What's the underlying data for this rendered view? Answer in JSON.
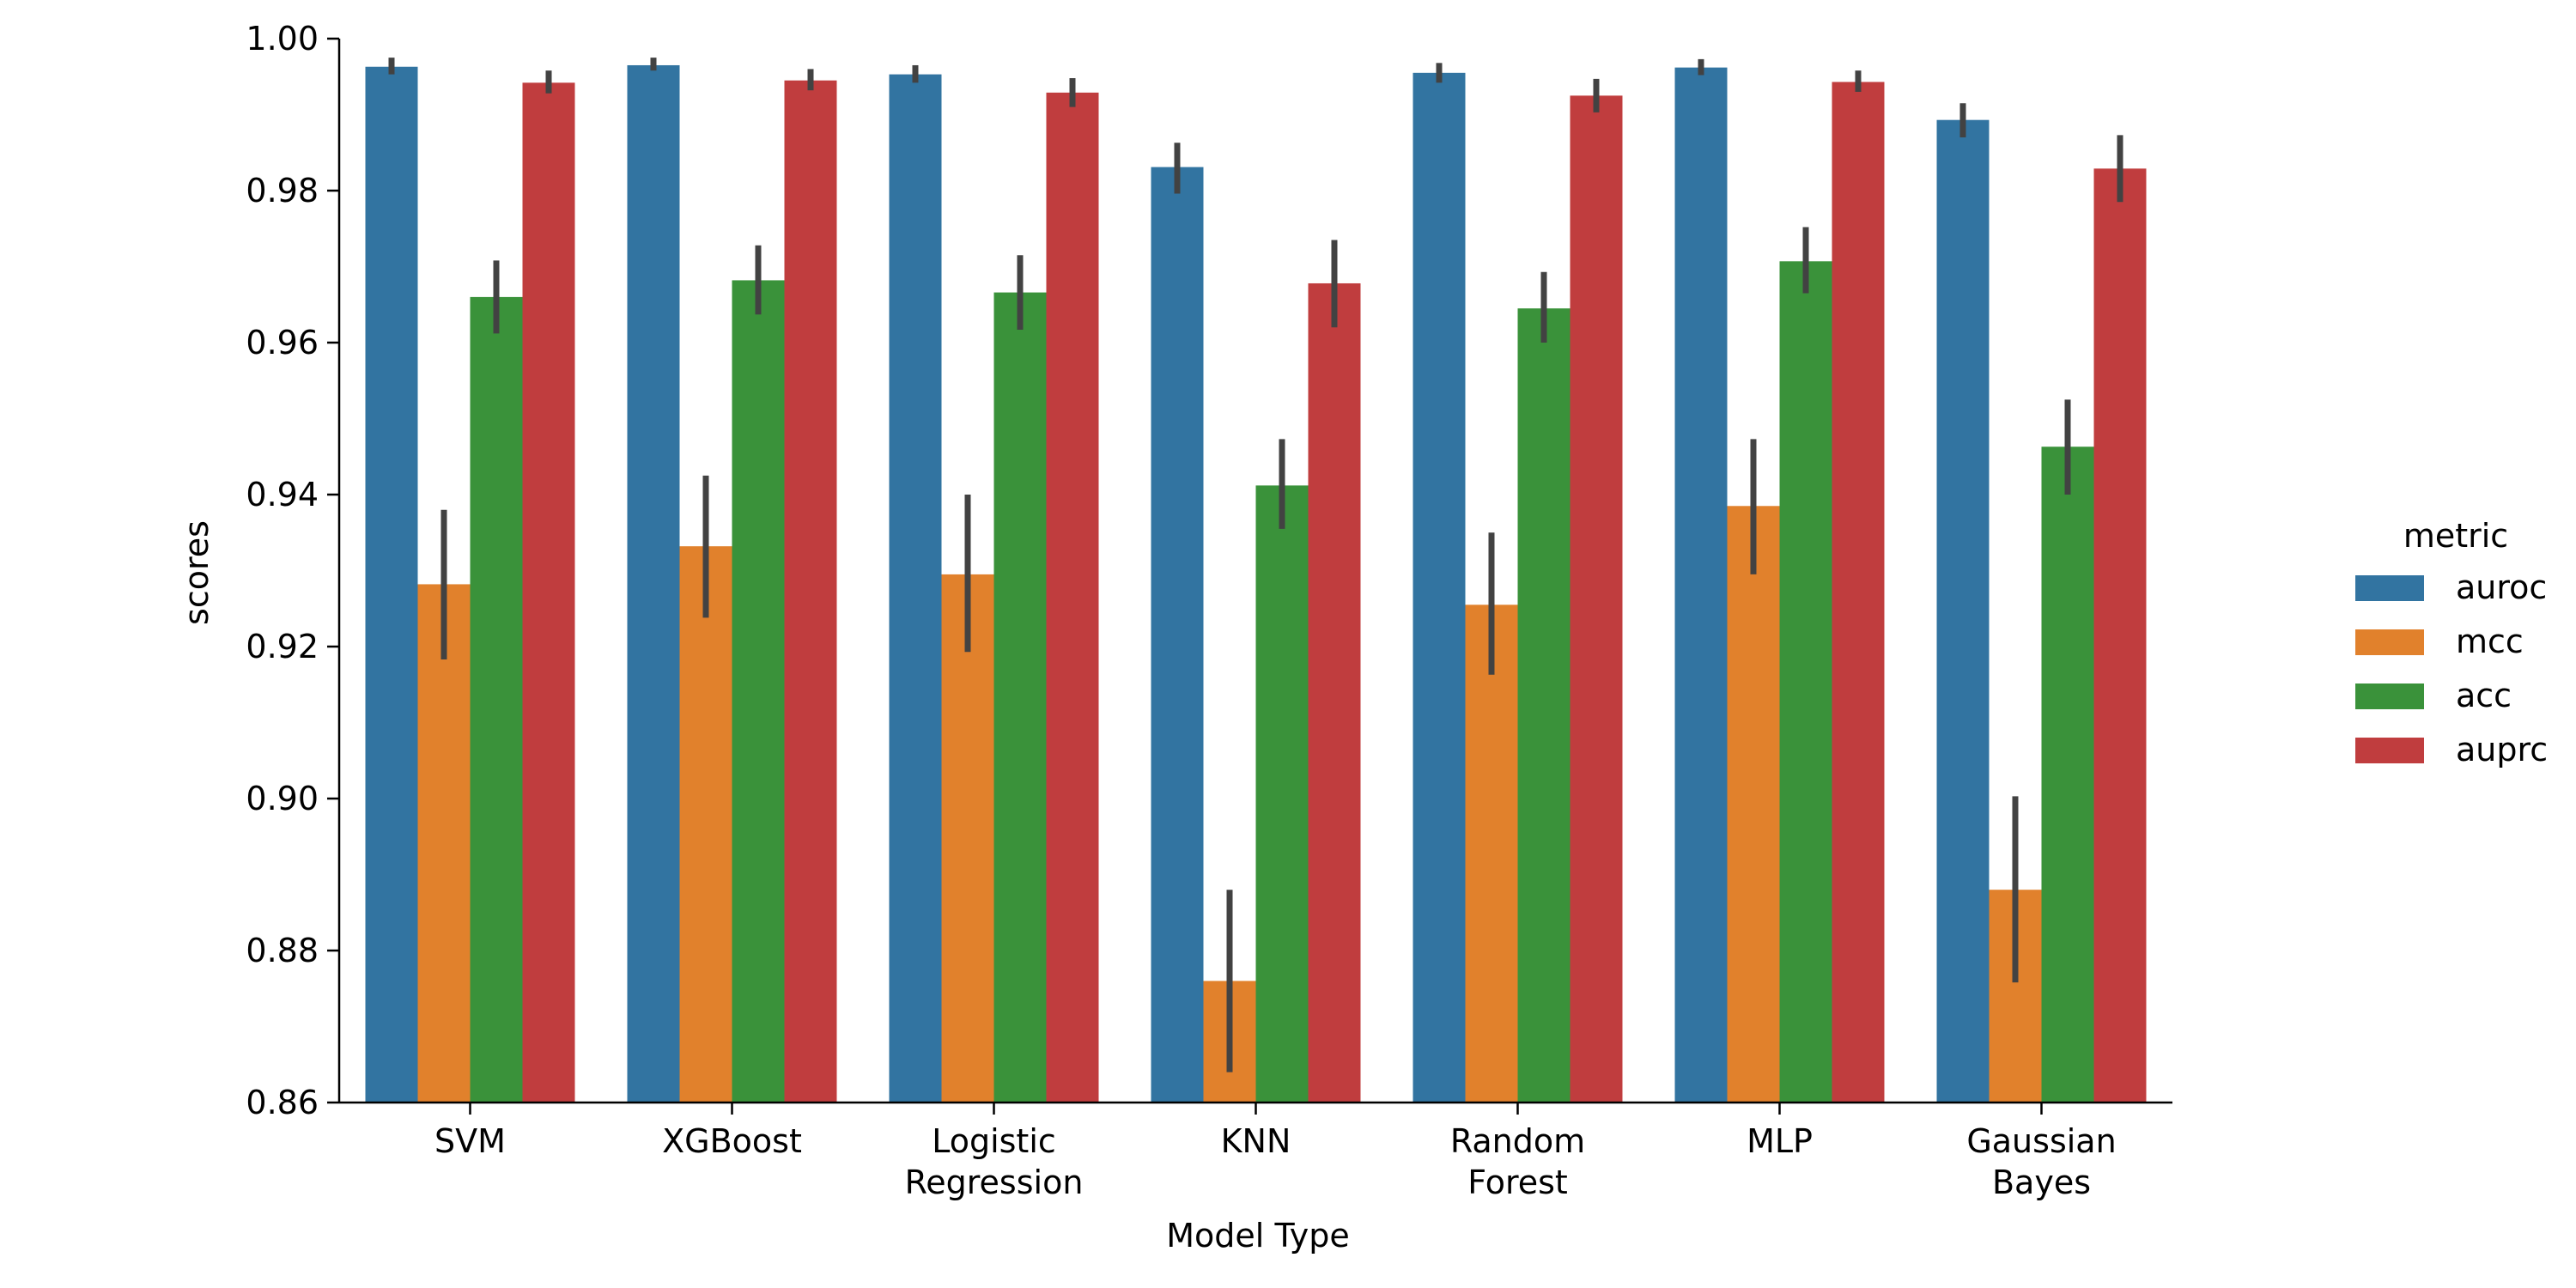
{
  "chart_data": {
    "type": "bar",
    "title": "",
    "xlabel": "Model Type",
    "ylabel": "scores",
    "ylim": [
      0.86,
      1.0
    ],
    "yticks": [
      "0.86",
      "0.88",
      "0.90",
      "0.92",
      "0.94",
      "0.96",
      "0.98",
      "1.00"
    ],
    "categories": [
      [
        "SVM"
      ],
      [
        "XGBoost"
      ],
      [
        "Logistic",
        "Regression"
      ],
      [
        "KNN"
      ],
      [
        "Random",
        "Forest"
      ],
      [
        "MLP"
      ],
      [
        "Gaussian",
        "Bayes"
      ]
    ],
    "legend": {
      "title": "metric",
      "placement": "right"
    },
    "series": [
      {
        "name": "auroc",
        "color": "#3274a1",
        "values": [
          0.9963,
          0.9965,
          0.9953,
          0.9831,
          0.9955,
          0.9962,
          0.9893
        ],
        "error_low": [
          0.9953,
          0.9958,
          0.9942,
          0.9796,
          0.9942,
          0.9952,
          0.987
        ],
        "error_high": [
          0.9975,
          0.9975,
          0.9965,
          0.9863,
          0.9968,
          0.9973,
          0.9915
        ]
      },
      {
        "name": "mcc",
        "color": "#e1812c",
        "values": [
          0.9282,
          0.9332,
          0.9295,
          0.876,
          0.9255,
          0.9385,
          0.888
        ],
        "error_low": [
          0.9183,
          0.9238,
          0.9193,
          0.864,
          0.9163,
          0.9295,
          0.8758
        ],
        "error_high": [
          0.938,
          0.9425,
          0.94,
          0.888,
          0.935,
          0.9473,
          0.9003
        ]
      },
      {
        "name": "acc",
        "color": "#3a923a",
        "values": [
          0.966,
          0.9682,
          0.9666,
          0.9412,
          0.9645,
          0.9707,
          0.9463
        ],
        "error_low": [
          0.9612,
          0.9637,
          0.9617,
          0.9355,
          0.96,
          0.9665,
          0.94
        ],
        "error_high": [
          0.9708,
          0.9728,
          0.9715,
          0.9473,
          0.9693,
          0.9752,
          0.9525
        ]
      },
      {
        "name": "auprc",
        "color": "#c03d3e",
        "values": [
          0.9942,
          0.9945,
          0.9929,
          0.9678,
          0.9925,
          0.9943,
          0.9829
        ],
        "error_low": [
          0.9928,
          0.9932,
          0.991,
          0.962,
          0.9903,
          0.993,
          0.9785
        ],
        "error_high": [
          0.9958,
          0.996,
          0.9948,
          0.9735,
          0.9947,
          0.9958,
          0.9873
        ]
      }
    ]
  }
}
